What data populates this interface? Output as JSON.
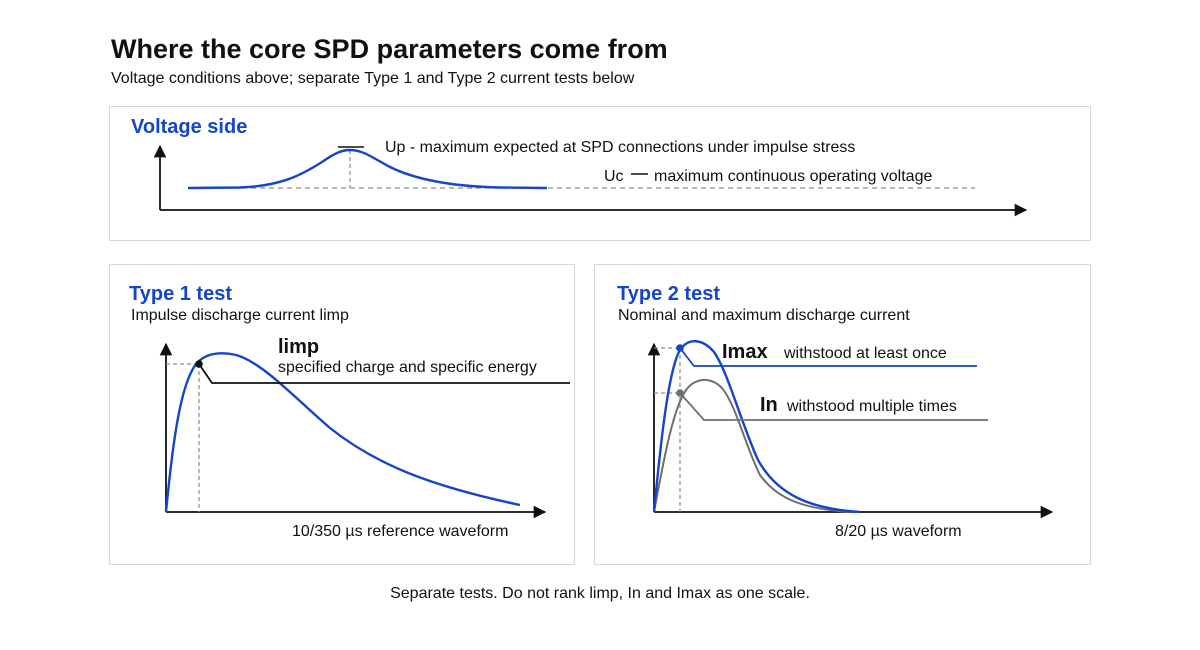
{
  "header": {
    "title": "Where the core SPD parameters come from",
    "subtitle": "Voltage conditions above; separate Type 1 and Type 2 current tests below"
  },
  "voltage_panel": {
    "title": "Voltage side",
    "up_label": "Up - maximum expected at SPD connections under impulse stress",
    "uc_label": "Uc",
    "uc_desc": "maximum continuous operating voltage"
  },
  "type1_panel": {
    "title": "Type 1 test",
    "subtitle": "Impulse discharge current limp",
    "peak_label": "limp",
    "peak_desc": "specified charge and specific energy",
    "waveform_label": "10/350 µs reference waveform"
  },
  "type2_panel": {
    "title": "Type 2 test",
    "subtitle": "Nominal and maximum discharge current",
    "imax_label": "Imax",
    "imax_desc": "withstood at least once",
    "in_label": "In",
    "in_desc": "withstood multiple times",
    "waveform_label": "8/20 µs waveform"
  },
  "footnote": "Separate tests. Do not rank limp, In and Imax as one scale.",
  "colors": {
    "accent_blue": "#1545c8",
    "gray_curve": "#6f6f6f",
    "axis": "#111111",
    "dashed": "#8c8c8c",
    "panel_border": "#d7d7d7"
  }
}
